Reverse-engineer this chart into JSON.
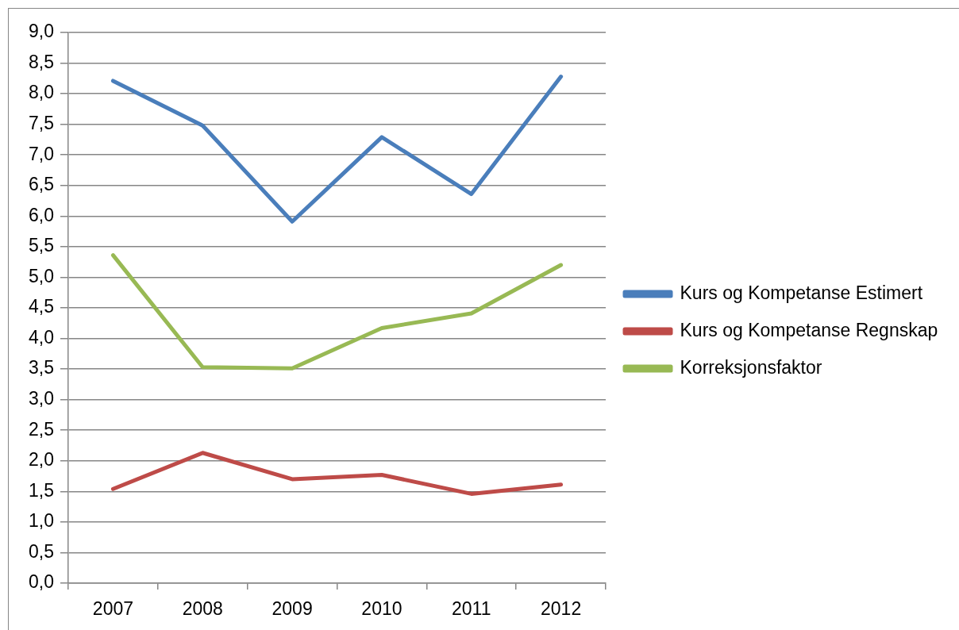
{
  "chart_data": {
    "type": "line",
    "categories": [
      "2007",
      "2008",
      "2009",
      "2010",
      "2011",
      "2012"
    ],
    "series": [
      {
        "name": "Kurs og Kompetanse Estimert",
        "color": "#4a7ebb",
        "values": [
          8.21,
          7.48,
          5.91,
          7.29,
          6.36,
          8.28
        ]
      },
      {
        "name": "Kurs og Kompetanse Regnskap",
        "color": "#be4b48",
        "values": [
          1.54,
          2.13,
          1.7,
          1.77,
          1.46,
          1.61
        ]
      },
      {
        "name": "Korreksjonsfaktor",
        "color": "#98b954",
        "values": [
          5.36,
          3.53,
          3.51,
          4.17,
          4.41,
          5.2
        ]
      }
    ],
    "ylim": [
      0,
      9
    ],
    "yticks": [
      {
        "value": 0,
        "label": "0,0"
      },
      {
        "value": 0.5,
        "label": "0,5"
      },
      {
        "value": 1,
        "label": "1,0"
      },
      {
        "value": 1.5,
        "label": "1,5"
      },
      {
        "value": 2,
        "label": "2,0"
      },
      {
        "value": 2.5,
        "label": "2,5"
      },
      {
        "value": 3,
        "label": "3,0"
      },
      {
        "value": 3.5,
        "label": "3,5"
      },
      {
        "value": 4,
        "label": "4,0"
      },
      {
        "value": 4.5,
        "label": "4,5"
      },
      {
        "value": 5,
        "label": "5,0"
      },
      {
        "value": 5.5,
        "label": "5,5"
      },
      {
        "value": 6,
        "label": "6,0"
      },
      {
        "value": 6.5,
        "label": "6,5"
      },
      {
        "value": 7,
        "label": "7,0"
      },
      {
        "value": 7.5,
        "label": "7,5"
      },
      {
        "value": 8,
        "label": "8,0"
      },
      {
        "value": 8.5,
        "label": "8,5"
      },
      {
        "value": 9,
        "label": "9,0"
      }
    ],
    "grid": "y",
    "legend": "right",
    "marker": "none",
    "line_style": "solid"
  }
}
